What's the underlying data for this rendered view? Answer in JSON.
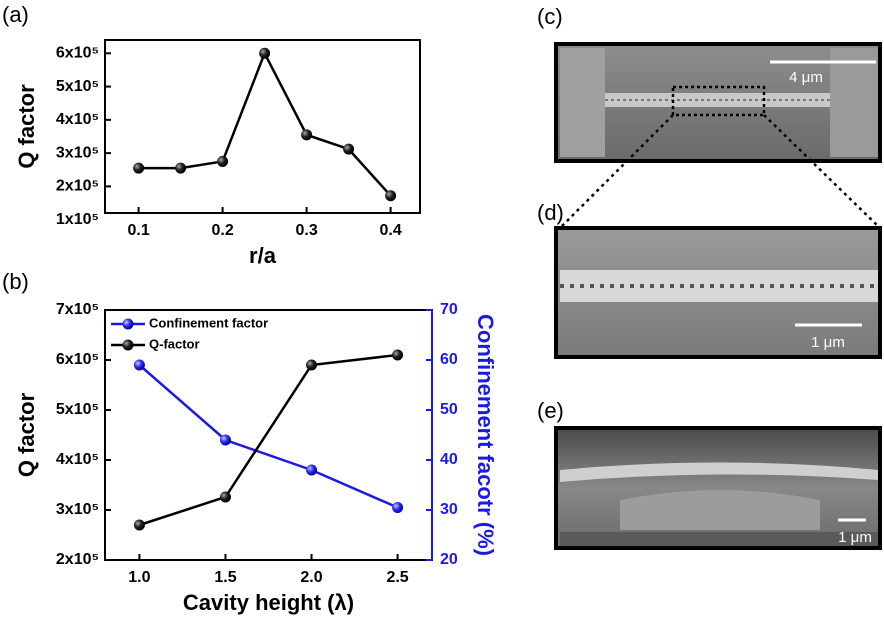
{
  "chart_data": [
    {
      "type": "line",
      "panel_label": "(a)",
      "x_label": "r/a",
      "y_label": "Q factor",
      "x": [
        0.1,
        0.15,
        0.2,
        0.25,
        0.3,
        0.35,
        0.4
      ],
      "values": [
        255000,
        255000,
        275000,
        600000,
        355000,
        312000,
        172000
      ],
      "color": "#000000",
      "xlim": [
        0.06,
        0.435
      ],
      "xticks": [
        0.1,
        0.2,
        0.3,
        0.4
      ],
      "ylim": [
        120000,
        640000
      ],
      "yticks": [
        {
          "value": 100000,
          "label": "1x10⁵"
        },
        {
          "value": 200000,
          "label": "2x10⁵"
        },
        {
          "value": 300000,
          "label": "3x10⁵"
        },
        {
          "value": 400000,
          "label": "4x10⁵"
        },
        {
          "value": 500000,
          "label": "5x10⁵"
        },
        {
          "value": 600000,
          "label": "6x10⁵"
        }
      ]
    },
    {
      "type": "line",
      "panel_label": "(b)",
      "x_label": "Cavity height (λ)",
      "y_label": "Q factor",
      "y2_label": "Confinement facotr (%)",
      "x": [
        1.0,
        1.5,
        2.0,
        2.5
      ],
      "series": [
        {
          "name": "Confinement factor",
          "color": "#1a1ae6",
          "axis": "y2",
          "values": [
            59,
            44,
            38,
            30.5
          ]
        },
        {
          "name": "Q-factor",
          "color": "#000000",
          "values": [
            270000,
            326000,
            590000,
            610000
          ]
        }
      ],
      "xlim": [
        0.8,
        2.7
      ],
      "xticks": [
        {
          "value": 1.0,
          "label": "1.0"
        },
        {
          "value": 1.5,
          "label": "1.5"
        },
        {
          "value": 2.0,
          "label": "2.0"
        },
        {
          "value": 2.5,
          "label": "2.5"
        }
      ],
      "ylim": [
        200000,
        700000
      ],
      "yticks": [
        {
          "value": 200000,
          "label": "2x10⁵"
        },
        {
          "value": 300000,
          "label": "3x10⁵"
        },
        {
          "value": 400000,
          "label": "4x10⁵"
        },
        {
          "value": 500000,
          "label": "5x10⁵"
        },
        {
          "value": 600000,
          "label": "6x10⁵"
        },
        {
          "value": 700000,
          "label": "7x10⁵"
        }
      ],
      "y2lim": [
        20,
        70
      ],
      "y2ticks": [
        20,
        30,
        40,
        50,
        60,
        70
      ],
      "legend": "upper left"
    }
  ],
  "images": [
    {
      "panel_label": "(c)",
      "scale_bar": "4 μm"
    },
    {
      "panel_label": "(d)",
      "scale_bar": "1 μm"
    },
    {
      "panel_label": "(e)",
      "scale_bar": "1 μm"
    }
  ]
}
